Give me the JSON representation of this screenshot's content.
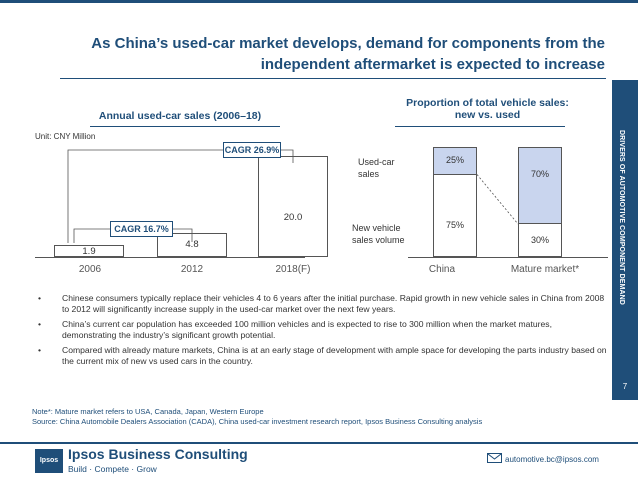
{
  "header": {
    "title_line1": "As China’s used-car market develops, demand for components from the",
    "title_line2": "independent aftermarket is expected to increase"
  },
  "sidebar": {
    "section_label": "DRIVERS OF AUTOMOTIVE COMPONENT DEMAND",
    "page_number": "7"
  },
  "left_chart": {
    "title": "Annual used-car sales (2006–18)",
    "unit": "Unit: CNY Million",
    "cagr_1": "CAGR 16.7%",
    "cagr_2": "CAGR 26.9%"
  },
  "right_chart": {
    "title_line1": "Proportion of total vehicle sales:",
    "title_line2": "new vs. used",
    "legend_used_line1": "Used-car",
    "legend_used_line2": "sales",
    "legend_new_line1": "New vehicle",
    "legend_new_line2": "sales volume"
  },
  "chart_data": [
    {
      "type": "bar",
      "title": "Annual used-car sales (2006–18)",
      "ylabel": "Unit: CNY Million",
      "categories": [
        "2006",
        "2012",
        "2018(F)"
      ],
      "values": [
        1.9,
        4.8,
        20.0
      ],
      "value_labels": [
        "1.9",
        "4.8",
        "20.0"
      ],
      "ylim": [
        0,
        22
      ],
      "annotations": [
        "CAGR 16.7%",
        "CAGR 26.9%"
      ]
    },
    {
      "type": "bar",
      "stacked": true,
      "title": "Proportion of total vehicle sales: new vs. used",
      "categories": [
        "China",
        "Mature market*"
      ],
      "series": [
        {
          "name": "New vehicle sales volume",
          "values": [
            75,
            30
          ],
          "labels": [
            "75%",
            "30%"
          ]
        },
        {
          "name": "Used-car sales",
          "values": [
            25,
            70
          ],
          "labels": [
            "25%",
            "70%"
          ]
        }
      ],
      "ylim": [
        0,
        100
      ]
    }
  ],
  "bullets": [
    "Chinese consumers typically replace their vehicles 4 to 6 years after the initial purchase. Rapid growth in new vehicle sales in China from 2008 to 2012 will significantly increase supply in the used-car market over the next few years.",
    "China’s current car population has exceeded 100 million vehicles and is expected to rise to 300 million when the market matures, demonstrating the industry’s significant growth potential.",
    "Compared with already mature markets, China is at an early stage of development with ample space for developing the parts industry based on the current mix of new vs used cars in the country."
  ],
  "notes": {
    "note": "Note*: Mature market refers to USA, Canada, Japan, Western Europe",
    "source": "Source: China Automobile Dealers Association (CADA), China used-car investment research report, Ipsos Business Consulting analysis"
  },
  "footer": {
    "logo_text": "Ipsos",
    "brand": "Ipsos Business Consulting",
    "tagline": "Build · Compete · Grow",
    "email": "automotive.bc@ipsos.com"
  },
  "colors": {
    "brand_blue": "#1f4e79",
    "used_fill": "#c9d5ee"
  }
}
